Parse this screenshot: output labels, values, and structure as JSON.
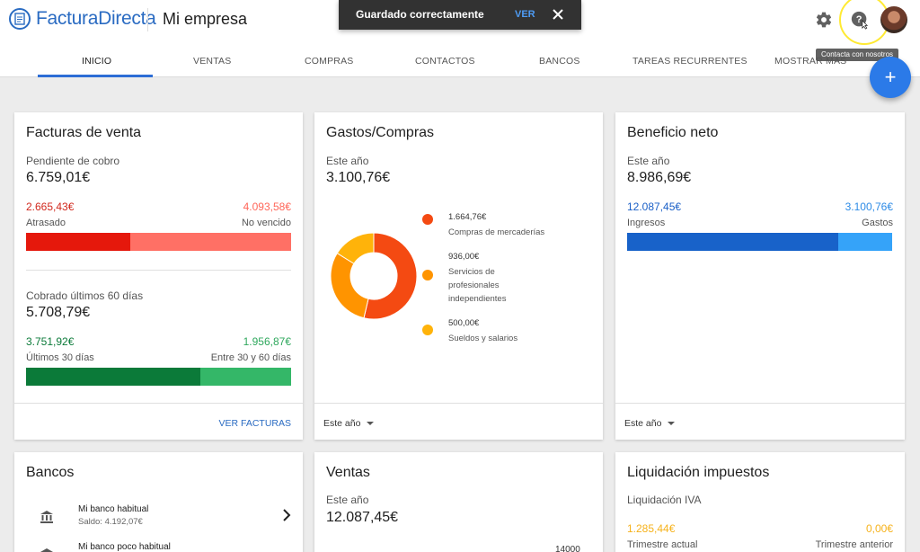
{
  "brand": {
    "name": "FacturaDirecta"
  },
  "company": "Mi empresa",
  "snackbar": {
    "message": "Guardado correctamente",
    "action": "VER"
  },
  "tooltip": "Contacta con nosotros",
  "tabs": [
    "INICIO",
    "VENTAS",
    "COMPRAS",
    "CONTACTOS",
    "BANCOS",
    "TAREAS RECURRENTES",
    "MOSTRAR MÁS"
  ],
  "colors": {
    "accent": "#2d6dd6",
    "red_dark": "#e5180c",
    "red_light": "#ff7065",
    "green_dark": "#0b7a39",
    "green_light": "#34b768",
    "blue_dark": "#1862c9",
    "blue_light": "#35a3f9"
  },
  "facturas": {
    "title": "Facturas de venta",
    "pendiente_label": "Pendiente de cobro",
    "pendiente_value": "6.759,01€",
    "atrasado_value": "2.665,43€",
    "atrasado_label": "Atrasado",
    "no_vencido_value": "4.093,58€",
    "no_vencido_label": "No vencido",
    "atrasado_fraction": 0.394,
    "cobrado_label": "Cobrado últimos 60 días",
    "cobrado_value": "5.708,79€",
    "ult30_value": "3.751,92€",
    "ult30_label": "Últimos 30 días",
    "entre_value": "1.956,87€",
    "entre_label": "Entre 30 y 60 días",
    "ult30_fraction": 0.657,
    "link": "VER FACTURAS"
  },
  "gastos": {
    "title": "Gastos/Compras",
    "period_label": "Este año",
    "total": "3.100,76€",
    "dropdown": "Este año",
    "chart_data": {
      "type": "pie",
      "slices": [
        {
          "amount": "1.664,76€",
          "label": "Compras de mercaderías",
          "value": 1664.76,
          "color": "#f44a12"
        },
        {
          "amount": "936,00€",
          "label": "Servicios de profesionales independientes",
          "value": 936.0,
          "color": "#ff9400"
        },
        {
          "amount": "500,00€",
          "label": "Sueldos y salarios",
          "value": 500.0,
          "color": "#ffb30a"
        }
      ]
    },
    "legend_lines": [
      [
        "Compras de mercaderías"
      ],
      [
        "Servicios de",
        "profesionales",
        "independientes"
      ],
      [
        "Sueldos y salarios"
      ]
    ]
  },
  "beneficio": {
    "title": "Beneficio neto",
    "period_label": "Este año",
    "total": "8.986,69€",
    "ingresos_value": "12.087,45€",
    "ingresos_label": "Ingresos",
    "gastos_value": "3.100,76€",
    "gastos_label": "Gastos",
    "ingresos_fraction": 0.796,
    "dropdown": "Este año"
  },
  "bancos": {
    "title": "Bancos",
    "items": [
      {
        "name": "Mi banco habitual",
        "balance": "Saldo: 4.192,07€"
      },
      {
        "name": "Mi banco poco habitual",
        "balance": ""
      }
    ]
  },
  "ventas": {
    "title": "Ventas",
    "period_label": "Este año",
    "total": "12.087,45€",
    "axis_tick": "14000"
  },
  "impuestos": {
    "title": "Liquidación impuestos",
    "subtitle": "Liquidación IVA",
    "actual_value": "1.285,44€",
    "actual_label": "Trimestre actual",
    "anterior_value": "0,00€",
    "anterior_label": "Trimestre anterior"
  }
}
